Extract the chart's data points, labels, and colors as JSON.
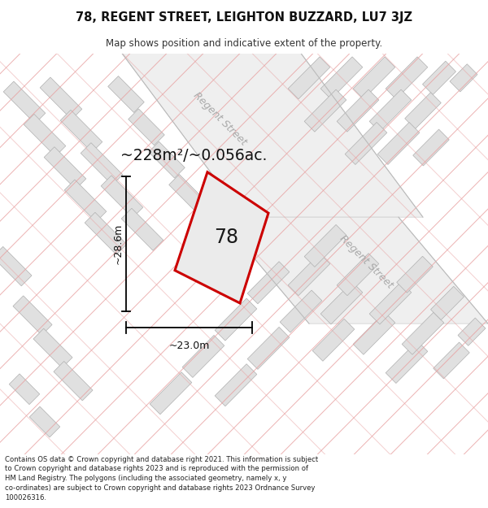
{
  "title": "78, REGENT STREET, LEIGHTON BUZZARD, LU7 3JZ",
  "subtitle": "Map shows position and indicative extent of the property.",
  "area_label": "~228m²/~0.056ac.",
  "number_label": "78",
  "dim_h": "~28.6m",
  "dim_w": "~23.0m",
  "street_label_1": "Regent Street",
  "street_label_2": "Regent Street",
  "footer": "Contains OS data © Crown copyright and database right 2021. This information is subject to Crown copyright and database rights 2023 and is reproduced with the permission of HM Land Registry. The polygons (including the associated geometry, namely x, y co-ordinates) are subject to Crown copyright and database rights 2023 Ordnance Survey 100026316.",
  "bg_color": "#ffffff",
  "map_bg": "#ffffff",
  "plot_fill": "#e8e8e8",
  "plot_outline": "#cc0000",
  "neighbor_fill": "#e0e0e0",
  "neighbor_outline": "#b0b0b0",
  "pink_line_color": "#e8a0a0",
  "footer_color": "#222222",
  "street_text_color": "#aaaaaa",
  "title_color": "#111111",
  "subtitle_color": "#333333"
}
